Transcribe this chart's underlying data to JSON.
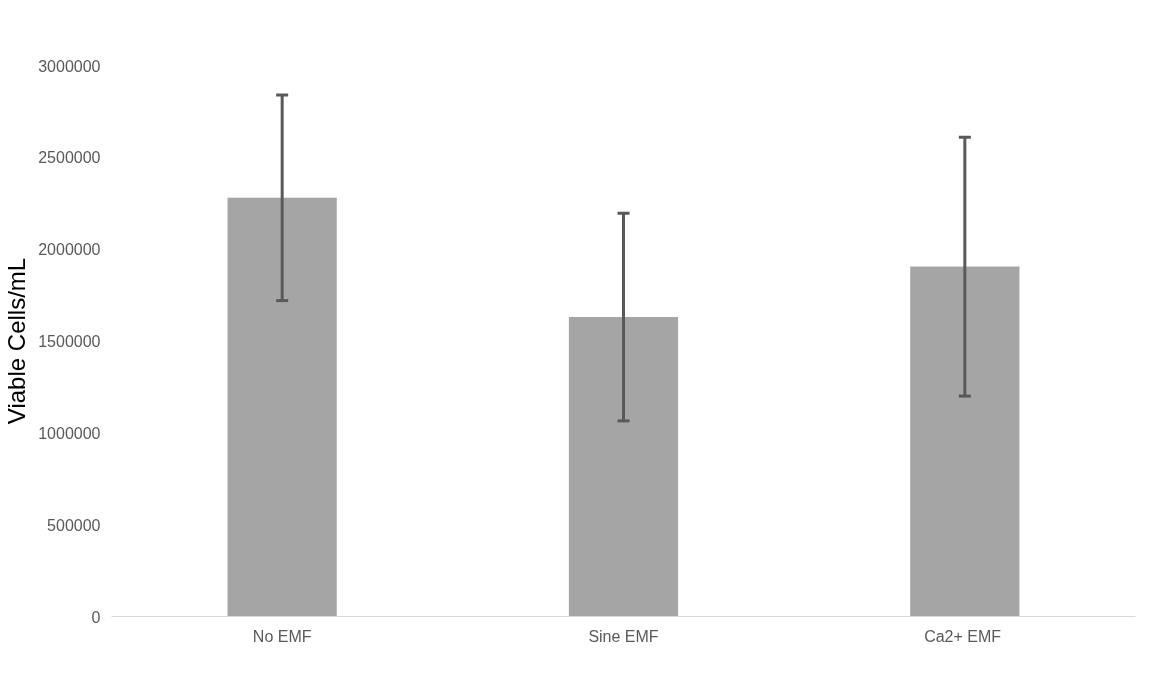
{
  "chart_data": {
    "type": "bar",
    "ylabel": "Viable Cells/mL",
    "categories": [
      "No EMF",
      "Sine EMF",
      "Ca2+  EMF"
    ],
    "values": [
      2280000,
      1630000,
      1905000
    ],
    "errors": [
      560000,
      565000,
      705000
    ],
    "color": "#a5a5a5",
    "ylim": [
      0,
      3000000
    ],
    "yticks": [
      0,
      500000,
      1000000,
      1500000,
      2000000,
      2500000,
      3000000
    ],
    "grid": false
  }
}
